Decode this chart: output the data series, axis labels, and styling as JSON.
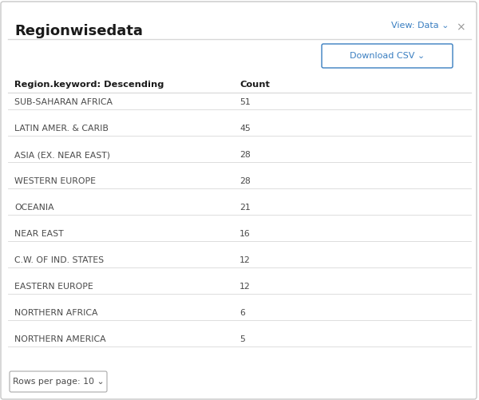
{
  "title": "Regionwisedata",
  "view_label": "View: Data ⌄",
  "close_symbol": "×",
  "download_btn": "Download CSV ⌄",
  "col1_header": "Region.keyword: Descending",
  "col2_header": "Count",
  "rows": [
    [
      "SUB-SAHARAN AFRICA",
      "51"
    ],
    [
      "LATIN AMER. & CARIB",
      "45"
    ],
    [
      "ASIA (EX. NEAR EAST)",
      "28"
    ],
    [
      "WESTERN EUROPE",
      "28"
    ],
    [
      "OCEANIA",
      "21"
    ],
    [
      "NEAR EAST",
      "16"
    ],
    [
      "C.W. OF IND. STATES",
      "12"
    ],
    [
      "EASTERN EUROPE",
      "12"
    ],
    [
      "NORTHERN AFRICA",
      "6"
    ],
    [
      "NORTHERN AMERICA",
      "5"
    ]
  ],
  "footer_label": "Rows per page: 10 ⌄",
  "bg_color": "#ffffff",
  "border_color": "#c8c8c8",
  "title_color": "#1a1a1a",
  "header_color": "#1a1a1a",
  "row_color": "#4a4a4a",
  "link_color": "#3a7fc1",
  "divider_color": "#d8d8d8",
  "close_color": "#999999",
  "title_fontsize": 13,
  "header_fontsize": 8.2,
  "row_fontsize": 7.8,
  "btn_fontsize": 8
}
